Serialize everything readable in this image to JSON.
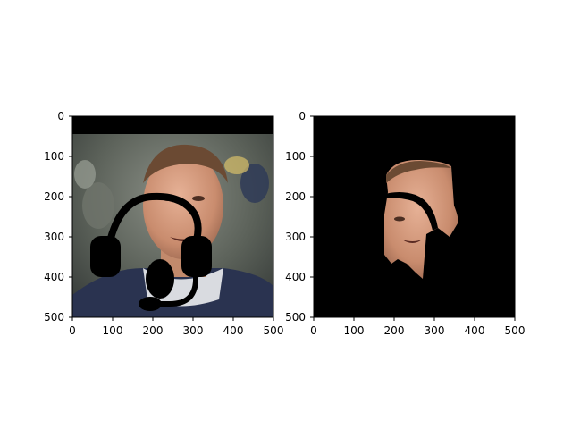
{
  "chart_data": [
    {
      "type": "image",
      "title": "",
      "xlabel": "",
      "ylabel": "",
      "xlim": [
        0,
        500
      ],
      "ylim": [
        500,
        0
      ],
      "xticks": [
        0,
        100,
        200,
        300,
        400,
        500
      ],
      "yticks": [
        0,
        100,
        200,
        300,
        400,
        500
      ],
      "content": "photo of man with black headset overlay",
      "colors": {
        "background_band": "#000000",
        "headset": "#000000"
      }
    },
    {
      "type": "image",
      "title": "",
      "xlabel": "",
      "ylabel": "",
      "xlim": [
        0,
        500
      ],
      "ylim": [
        500,
        0
      ],
      "xticks": [
        0,
        100,
        200,
        300,
        400,
        500
      ],
      "yticks": [
        0,
        100,
        200,
        300,
        400,
        500
      ],
      "content": "segmented face region on black background",
      "colors": {
        "background": "#000000"
      }
    }
  ]
}
